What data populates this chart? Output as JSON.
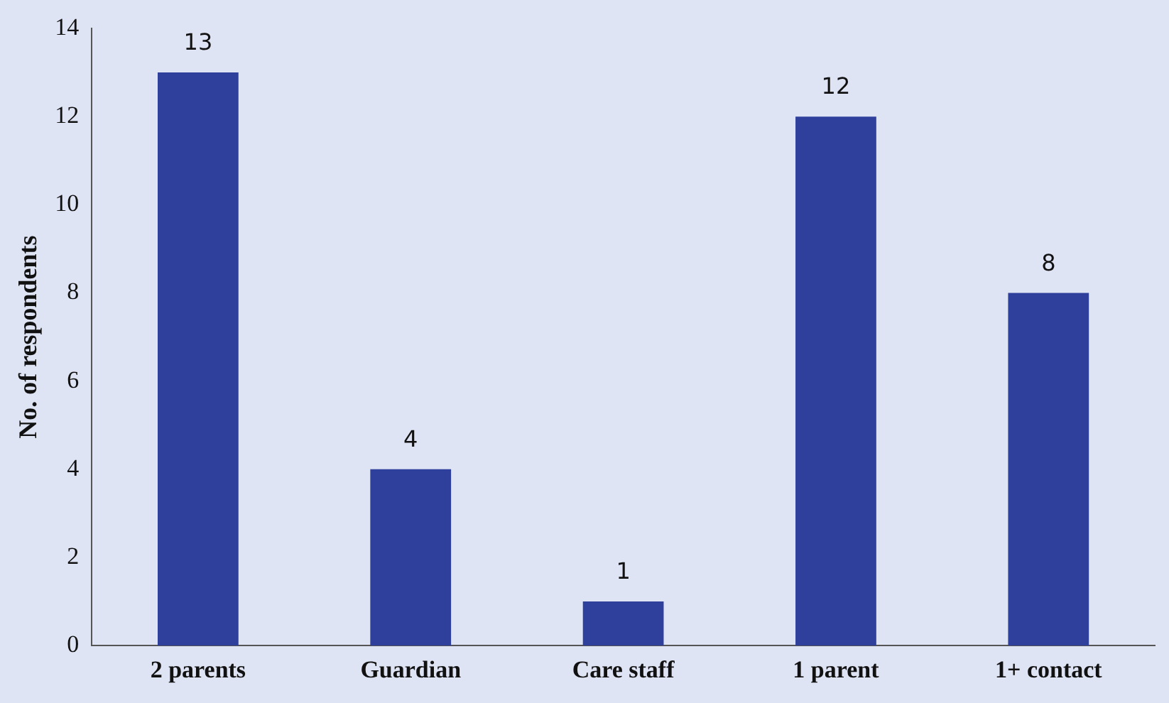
{
  "chart_data": {
    "type": "bar",
    "ylabel": "No. of respondents",
    "categories": [
      "2 parents",
      "Guardian",
      "Care staff",
      "1 parent",
      "1+ contact"
    ],
    "values": [
      13,
      4,
      1,
      12,
      8
    ],
    "color": "#2e3f9c",
    "ylim": [
      0,
      14
    ],
    "yticks": [
      0,
      2,
      4,
      6,
      8,
      10,
      12,
      14
    ],
    "grid": false,
    "legend": false,
    "data_labels": true
  }
}
